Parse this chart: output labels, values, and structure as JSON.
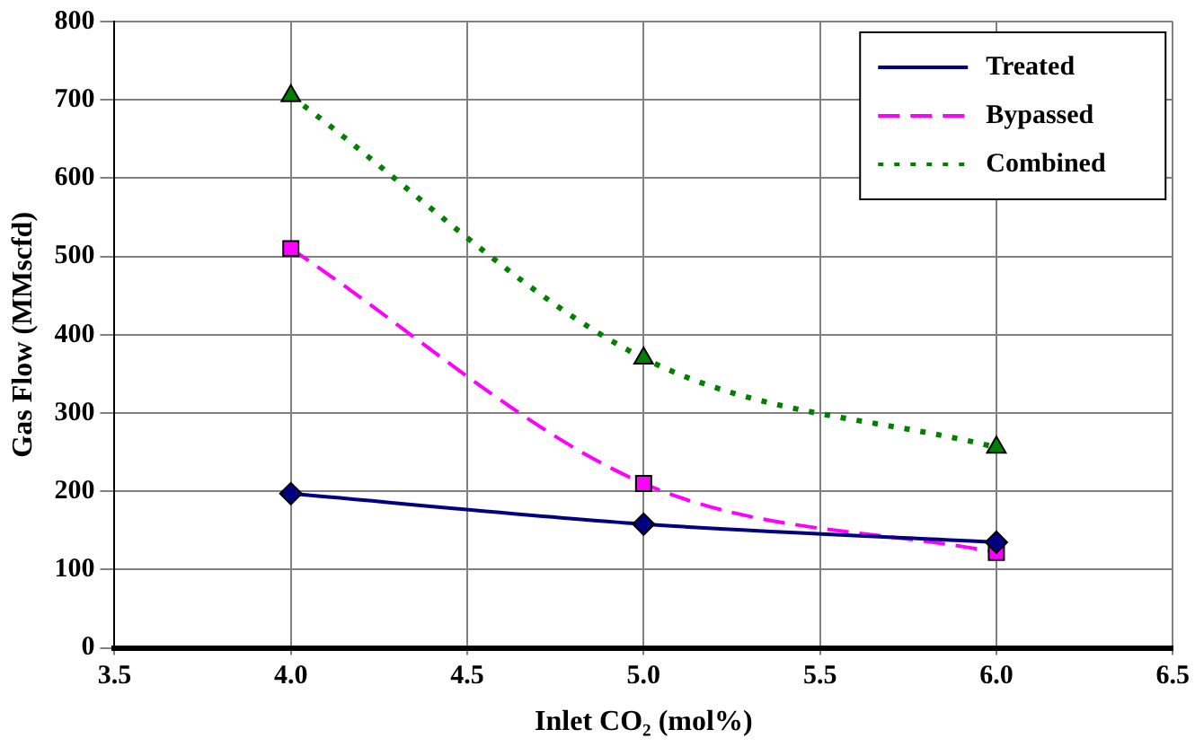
{
  "chart_data": {
    "type": "line",
    "xlabel": "Inlet CO₂ (mol%)",
    "ylabel": "Gas Flow (MMscfd)",
    "x": [
      4.0,
      5.0,
      6.0
    ],
    "xlim": [
      3.5,
      6.5
    ],
    "xticks": [
      {
        "value": 3.5,
        "label": "3.5"
      },
      {
        "value": 4,
        "label": "4.0"
      },
      {
        "value": 4.5,
        "label": "4.5"
      },
      {
        "value": 5,
        "label": "5.0"
      },
      {
        "value": 5.5,
        "label": "5.5"
      },
      {
        "value": 6,
        "label": "6.0"
      },
      {
        "value": 6.5,
        "label": "6.5"
      }
    ],
    "ylim": [
      0,
      800
    ],
    "yticks": [
      0,
      100,
      200,
      300,
      400,
      500,
      600,
      700,
      800
    ],
    "grid": true,
    "legend": "top right",
    "series": [
      {
        "name": "Treated",
        "color": "#000080",
        "values": [
          197,
          158,
          135
        ],
        "marker": "diamond",
        "line_style": "solid"
      },
      {
        "name": "Bypassed",
        "color": "#ff00ff",
        "values": [
          510,
          210,
          122
        ],
        "marker": "square",
        "line_style": "dashed"
      },
      {
        "name": "Combined",
        "color": "#008000",
        "values": [
          705,
          370,
          256
        ],
        "marker": "triangle",
        "line_style": "dotted"
      }
    ]
  }
}
